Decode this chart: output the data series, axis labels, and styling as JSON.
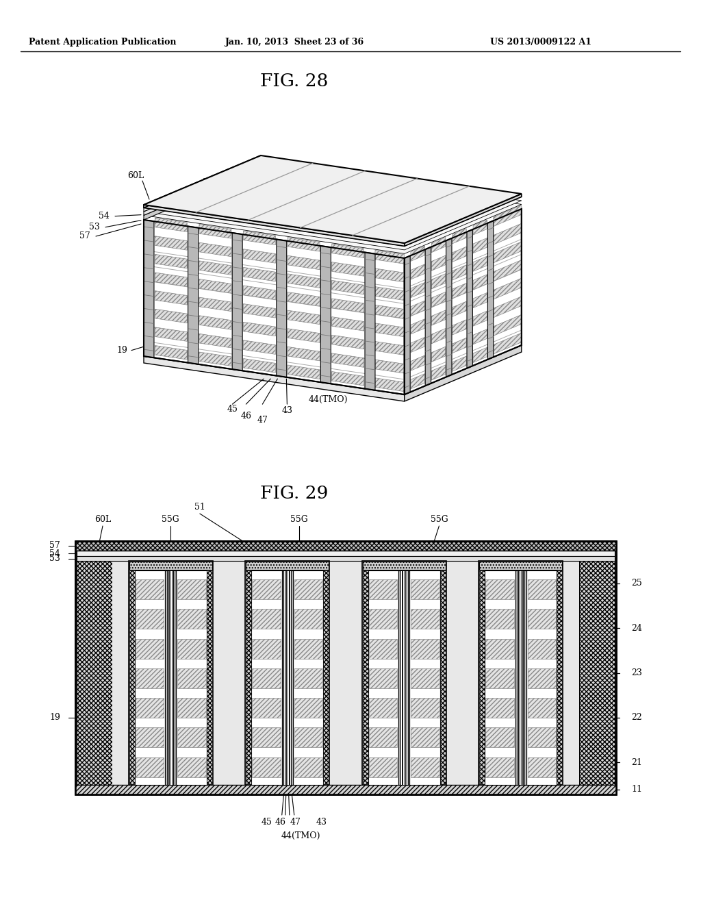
{
  "header_left": "Patent Application Publication",
  "header_mid": "Jan. 10, 2013  Sheet 23 of 36",
  "header_right": "US 2013/0009122 A1",
  "fig28_title": "FIG. 28",
  "fig29_title": "FIG. 29",
  "bg_color": "#ffffff",
  "line_color": "#000000"
}
